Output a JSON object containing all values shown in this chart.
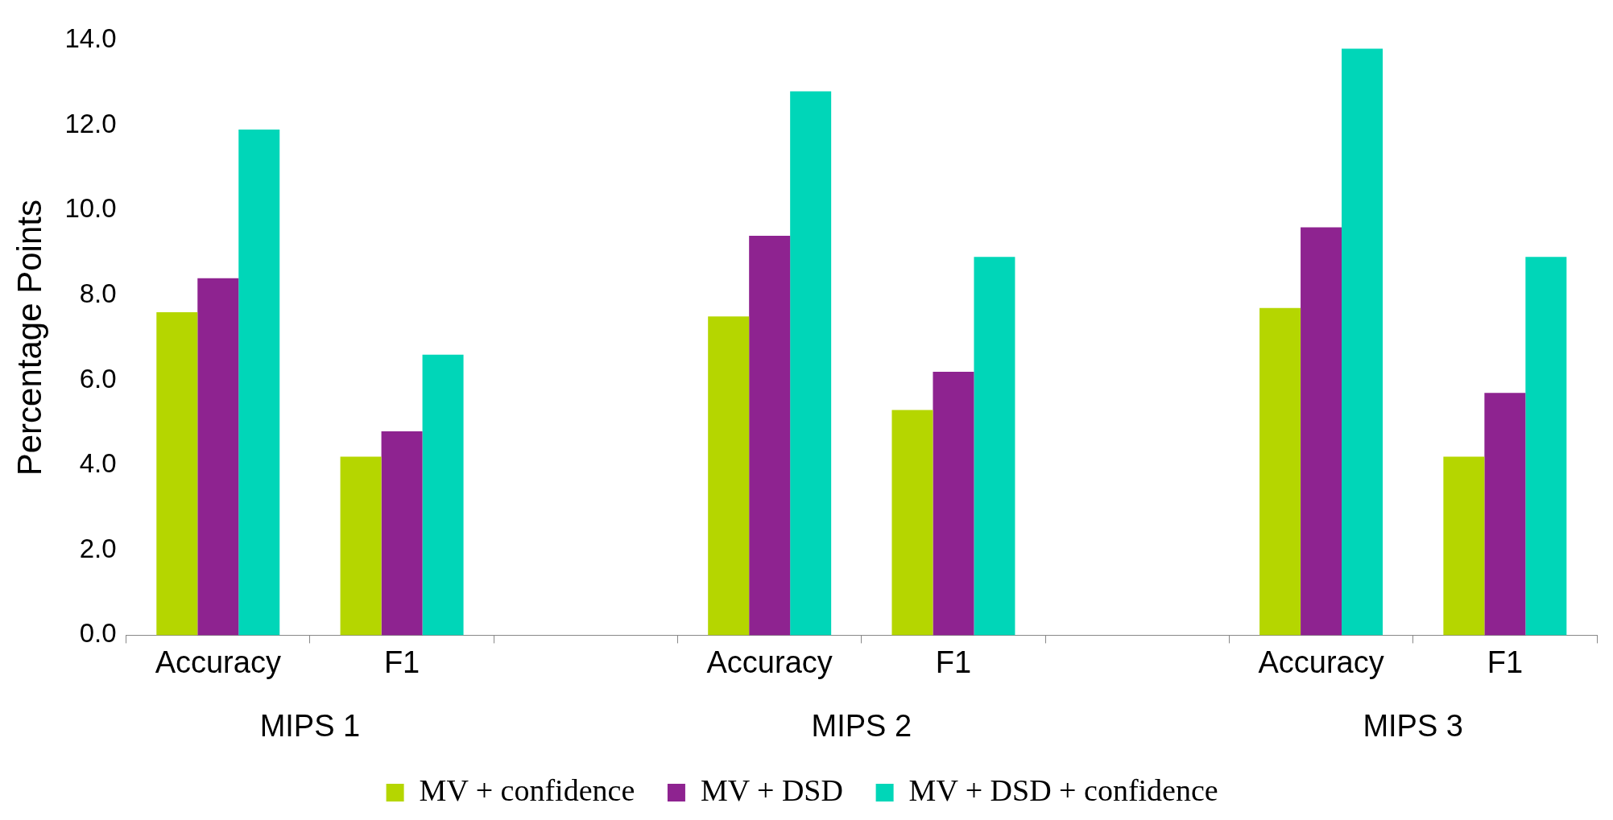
{
  "chart_data": {
    "type": "bar",
    "ylabel": "Percentage Points",
    "categories": [
      "Accuracy",
      "F1",
      null,
      "Accuracy",
      "F1",
      null,
      "Accuracy",
      "F1"
    ],
    "series": [
      {
        "name": "MV + confidence",
        "color": "#b5d600",
        "values": [
          7.6,
          4.2,
          null,
          7.5,
          5.3,
          null,
          7.7,
          4.2
        ]
      },
      {
        "name": "MV + DSD",
        "color": "#8e2390",
        "values": [
          8.4,
          4.8,
          null,
          9.4,
          6.2,
          null,
          9.6,
          5.7
        ]
      },
      {
        "name": "MV + DSD + confidence",
        "color": "#00d6b8",
        "values": [
          11.9,
          6.6,
          null,
          12.8,
          8.9,
          null,
          13.8,
          8.9
        ]
      }
    ],
    "ylim": [
      0,
      14
    ],
    "yticks": [
      {
        "value": 0,
        "label": "0.0"
      },
      {
        "value": 2,
        "label": "2.0"
      },
      {
        "value": 4,
        "label": "4.0"
      },
      {
        "value": 6,
        "label": "6.0"
      },
      {
        "value": 8,
        "label": "8.0"
      },
      {
        "value": 10,
        "label": "10.0"
      },
      {
        "value": 12,
        "label": "12.0"
      },
      {
        "value": 14,
        "label": "14.0"
      }
    ],
    "annotations": [
      "MIPS 1",
      "MIPS 2",
      "MIPS 3"
    ],
    "grid": false,
    "legend": "bottom"
  }
}
